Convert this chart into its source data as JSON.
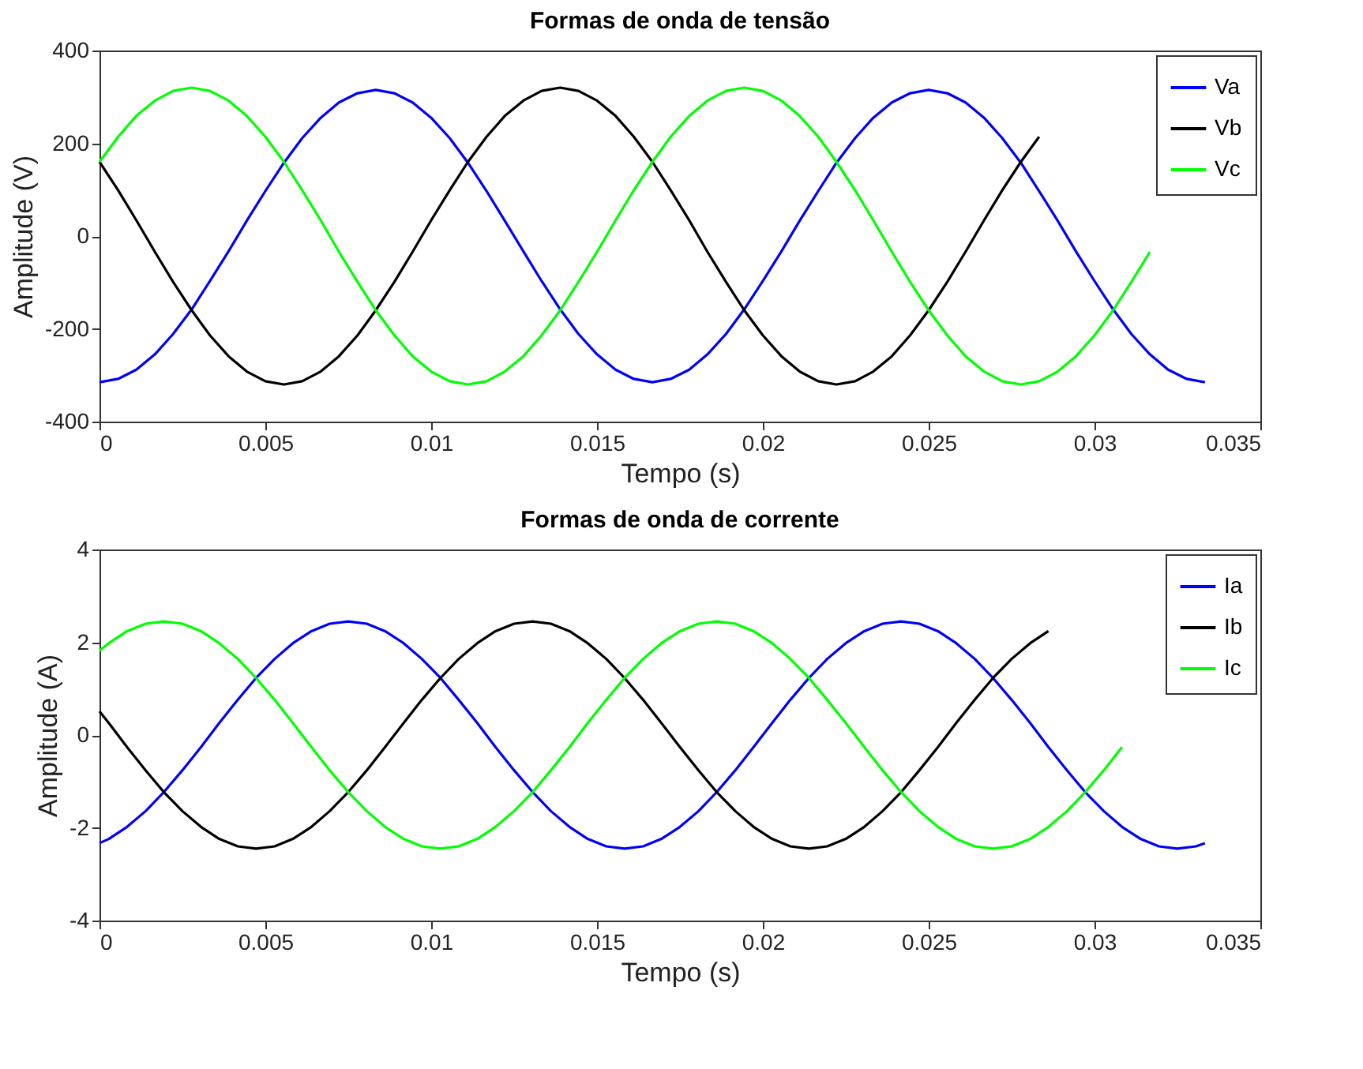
{
  "chart_data": [
    {
      "type": "line",
      "title": "Formas de onda de tensão",
      "xlabel": "Tempo (s)",
      "ylabel": "Amplitude (V)",
      "xlim": [
        0,
        0.035
      ],
      "xticks": [
        0,
        0.005,
        0.01,
        0.015,
        0.02,
        0.025,
        0.03,
        0.035
      ],
      "ylim": [
        -400,
        400
      ],
      "yticks": [
        -400,
        -200,
        0,
        200,
        400
      ],
      "grid": false,
      "legend": "top right",
      "x": [
        0,
        0.00056,
        0.00111,
        0.00167,
        0.00222,
        0.00278,
        0.00333,
        0.00389,
        0.00444,
        0.005,
        0.00556,
        0.00611,
        0.00667,
        0.00722,
        0.00778,
        0.00833,
        0.00889,
        0.00944,
        0.01,
        0.01056,
        0.01111,
        0.01167,
        0.01222,
        0.01278,
        0.01333,
        0.01389,
        0.01444,
        0.015,
        0.01556,
        0.01611,
        0.01667,
        0.01722,
        0.01778,
        0.01833,
        0.01889,
        0.01944,
        0.02,
        0.02056,
        0.02111,
        0.02167,
        0.02222,
        0.02278,
        0.02333,
        0.02389,
        0.02444,
        0.025,
        0.02556,
        0.02611,
        0.02667,
        0.02722,
        0.02778,
        0.02833,
        0.02889,
        0.02944,
        0.03,
        0.03056,
        0.03111,
        0.03167,
        0.03222,
        0.03278,
        0.03333
      ],
      "series": [
        {
          "name": "Va",
          "color": "#0000ff",
          "values": [
            -315,
            -308,
            -288,
            -255,
            -211,
            -158,
            -97,
            -33,
            33,
            97,
            158,
            211,
            255,
            288,
            308,
            315,
            308,
            288,
            255,
            211,
            158,
            97,
            33,
            -33,
            -97,
            -158,
            -211,
            -255,
            -288,
            -308,
            -315,
            -308,
            -288,
            -255,
            -211,
            -158,
            -97,
            -33,
            33,
            97,
            158,
            211,
            255,
            288,
            308,
            315,
            308,
            288,
            255,
            211,
            158,
            97,
            33,
            -33,
            -97,
            -158,
            -211,
            -255,
            -288,
            -308,
            -315
          ]
        },
        {
          "name": "Vb",
          "color": "#000000",
          "values": [
            160,
            99,
            34,
            -34,
            -99,
            -160,
            -214,
            -259,
            -292,
            -313,
            -320,
            -313,
            -292,
            -259,
            -214,
            -160,
            -99,
            -34,
            34,
            99,
            160,
            214,
            259,
            292,
            313,
            320,
            313,
            292,
            259,
            214,
            160,
            99,
            34,
            -34,
            -99,
            -160,
            -214,
            -259,
            -292,
            -313,
            -320,
            -313,
            -292,
            -259,
            -214,
            -160,
            -99,
            -34,
            34,
            99,
            160,
            214,
            null,
            null,
            null,
            null,
            null,
            null,
            null,
            null,
            null
          ]
        },
        {
          "name": "Vc",
          "color": "#00ff00",
          "values": [
            160,
            214,
            259,
            292,
            313,
            320,
            313,
            292,
            259,
            214,
            160,
            99,
            34,
            -34,
            -99,
            -160,
            -214,
            -259,
            -292,
            -313,
            -320,
            -313,
            -292,
            -259,
            -214,
            -160,
            -99,
            -34,
            34,
            99,
            160,
            214,
            259,
            292,
            313,
            320,
            313,
            292,
            259,
            214,
            160,
            99,
            34,
            -34,
            -99,
            -160,
            -214,
            -259,
            -292,
            -313,
            -320,
            -313,
            -292,
            -259,
            -214,
            -160,
            -99,
            -34,
            null,
            null,
            null
          ]
        }
      ]
    },
    {
      "type": "line",
      "title": "Formas de onda de corrente",
      "xlabel": "Tempo (s)",
      "ylabel": "Amplitude (A)",
      "xlim": [
        0,
        0.035
      ],
      "xticks": [
        0,
        0.005,
        0.01,
        0.015,
        0.02,
        0.025,
        0.03,
        0.035
      ],
      "ylim": [
        -4,
        4
      ],
      "yticks": [
        -4,
        -2,
        0,
        2,
        4
      ],
      "grid": false,
      "legend": "top right",
      "x": [
        0,
        0.00028,
        0.00083,
        0.00139,
        0.00194,
        0.0025,
        0.00306,
        0.00361,
        0.00417,
        0.00472,
        0.00528,
        0.00583,
        0.00639,
        0.00694,
        0.0075,
        0.00806,
        0.00861,
        0.00917,
        0.00972,
        0.01028,
        0.01083,
        0.01139,
        0.01194,
        0.0125,
        0.01306,
        0.01361,
        0.01417,
        0.01472,
        0.01528,
        0.01583,
        0.01639,
        0.01694,
        0.0175,
        0.01806,
        0.01861,
        0.01917,
        0.01972,
        0.02028,
        0.02083,
        0.02139,
        0.02194,
        0.0225,
        0.02306,
        0.02361,
        0.02417,
        0.02472,
        0.02528,
        0.02583,
        0.02639,
        0.02694,
        0.0275,
        0.02806,
        0.02861,
        0.02917,
        0.02972,
        0.03028,
        0.03083,
        0.03139,
        0.03194,
        0.0325,
        0.03306,
        0.03333
      ],
      "series": [
        {
          "name": "Ia",
          "color": "#0000ff",
          "values": [
            -2.33,
            -2.24,
            -1.98,
            -1.64,
            -1.23,
            -0.76,
            -0.26,
            0.26,
            0.76,
            1.23,
            1.64,
            1.98,
            2.24,
            2.4,
            2.45,
            2.4,
            2.24,
            1.98,
            1.64,
            1.23,
            0.76,
            0.26,
            -0.26,
            -0.76,
            -1.23,
            -1.64,
            -1.98,
            -2.24,
            -2.4,
            -2.45,
            -2.4,
            -2.24,
            -1.98,
            -1.64,
            -1.23,
            -0.76,
            -0.26,
            0.26,
            0.76,
            1.23,
            1.64,
            1.98,
            2.24,
            2.4,
            2.45,
            2.4,
            2.24,
            1.98,
            1.64,
            1.23,
            0.76,
            0.26,
            -0.26,
            -0.76,
            -1.23,
            -1.64,
            -1.98,
            -2.24,
            -2.4,
            -2.45,
            -2.4,
            -2.33
          ]
        },
        {
          "name": "Ib",
          "color": "#000000",
          "values": [
            0.51,
            0.26,
            -0.26,
            -0.76,
            -1.23,
            -1.64,
            -1.98,
            -2.24,
            -2.4,
            -2.45,
            -2.4,
            -2.24,
            -1.98,
            -1.64,
            -1.23,
            -0.76,
            -0.26,
            0.26,
            0.76,
            1.23,
            1.64,
            1.98,
            2.24,
            2.4,
            2.45,
            2.4,
            2.24,
            1.98,
            1.64,
            1.23,
            0.76,
            0.26,
            -0.26,
            -0.76,
            -1.23,
            -1.64,
            -1.98,
            -2.24,
            -2.4,
            -2.45,
            -2.4,
            -2.24,
            -1.98,
            -1.64,
            -1.23,
            -0.76,
            -0.26,
            0.26,
            0.76,
            1.23,
            1.64,
            1.98,
            2.24,
            null,
            null,
            null,
            null,
            null,
            null,
            null,
            null,
            null
          ]
        },
        {
          "name": "Ic",
          "color": "#00ff00",
          "values": [
            1.82,
            1.98,
            2.24,
            2.4,
            2.45,
            2.4,
            2.24,
            1.98,
            1.64,
            1.23,
            0.76,
            0.26,
            -0.26,
            -0.76,
            -1.23,
            -1.64,
            -1.98,
            -2.24,
            -2.4,
            -2.45,
            -2.4,
            -2.24,
            -1.98,
            -1.64,
            -1.23,
            -0.76,
            -0.26,
            0.26,
            0.76,
            1.23,
            1.64,
            1.98,
            2.24,
            2.4,
            2.45,
            2.4,
            2.24,
            1.98,
            1.64,
            1.23,
            0.76,
            0.26,
            -0.26,
            -0.76,
            -1.23,
            -1.64,
            -1.98,
            -2.24,
            -2.4,
            -2.45,
            -2.4,
            -2.24,
            -1.98,
            -1.64,
            -1.23,
            -0.76,
            -0.26,
            null,
            null,
            null,
            null,
            null
          ]
        }
      ]
    }
  ]
}
